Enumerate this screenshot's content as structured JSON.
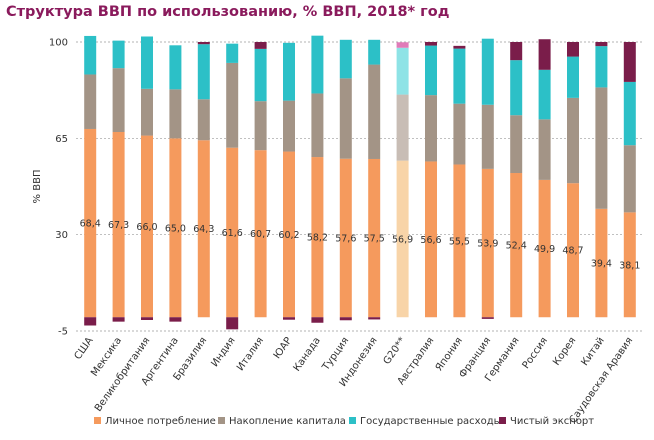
{
  "chart_data": {
    "type": "bar",
    "stacked": true,
    "title": "Структура ВВП по использованию, % ВВП, 2018* год",
    "ylabel": "% ВВП",
    "xlabel": "",
    "ylim": [
      -5,
      100
    ],
    "yticks": [
      "-5",
      "30",
      "65",
      "100"
    ],
    "ytick_values": [
      -5,
      30,
      65,
      100
    ],
    "grid": true,
    "legend_position": "bottom",
    "categories": [
      "США",
      "Мексика",
      "Великобритания",
      "Аргентина",
      "Бразилия",
      "Индия",
      "Италия",
      "ЮАР",
      "Канада",
      "Турция",
      "Индонезия",
      "G20**",
      "Австралия",
      "Япония",
      "Франция",
      "Германия",
      "Россия",
      "Корея",
      "Китай",
      "Саудовская Аравия"
    ],
    "highlight_category": "G20**",
    "series": [
      {
        "name": "Личное потребление",
        "color": "#f59a5d",
        "highlight_color": "#f8d4a8",
        "values": [
          68.4,
          67.3,
          66.0,
          65.0,
          64.3,
          61.6,
          60.7,
          60.2,
          58.2,
          57.6,
          57.5,
          56.9,
          56.6,
          55.5,
          53.9,
          52.4,
          49.9,
          48.7,
          39.4,
          38.1
        ]
      },
      {
        "name": "Накопление капитала",
        "color": "#a39486",
        "highlight_color": "#c8bdb5",
        "values": [
          19.8,
          23.2,
          17.0,
          17.8,
          14.9,
          30.8,
          17.8,
          18.5,
          23.1,
          29.2,
          34.3,
          24.0,
          24.1,
          22.1,
          23.3,
          21.0,
          22.0,
          31.0,
          44.1,
          24.4
        ]
      },
      {
        "name": "Государственные расходы",
        "color": "#2cc0c7",
        "highlight_color": "#8ee3e6",
        "values": [
          14.0,
          10.0,
          19.0,
          16.0,
          20.0,
          7.0,
          19.0,
          21.0,
          21.0,
          14.0,
          9.0,
          17.0,
          18.0,
          20.0,
          24.0,
          20.0,
          18.0,
          15.0,
          15.0,
          23.0
        ]
      },
      {
        "name": "Чистый экспорт",
        "color": "#7a1d4a",
        "highlight_color": "#e07bb8",
        "values": [
          -3.0,
          -1.6,
          -1.0,
          -1.6,
          0.8,
          -4.4,
          2.5,
          -0.9,
          -2.0,
          -1.1,
          -0.8,
          2.0,
          1.3,
          1.0,
          -0.6,
          6.6,
          11.1,
          5.3,
          1.5,
          14.5
        ]
      }
    ]
  }
}
